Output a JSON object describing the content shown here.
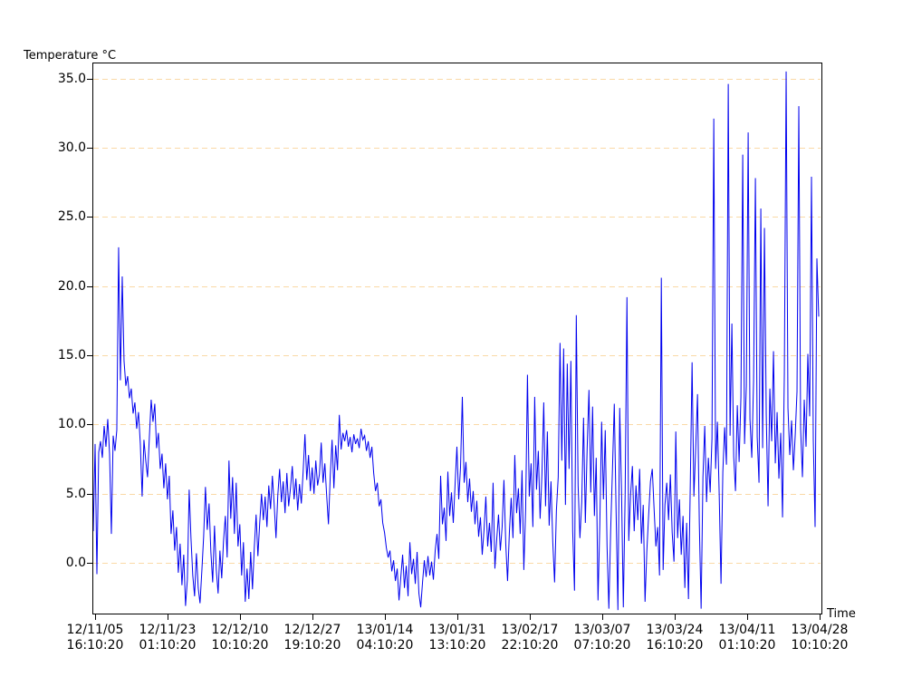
{
  "chart_data": {
    "type": "line",
    "title": "",
    "ylabel": "Temperature °C",
    "xlabel": "Time",
    "legend": "none",
    "grid": "horizontal-dashed",
    "background_color": "#ffffff",
    "axis_color": "#000000",
    "gridline_color": "#fad9a6",
    "ylim": [
      -3.65,
      36.15
    ],
    "y_ticks": [
      {
        "label": "35.0",
        "value": 35
      },
      {
        "label": "30.0",
        "value": 30
      },
      {
        "label": "25.0",
        "value": 25
      },
      {
        "label": "20.0",
        "value": 20
      },
      {
        "label": "15.0",
        "value": 15
      },
      {
        "label": "10.0",
        "value": 10
      },
      {
        "label": "5.0",
        "value": 5
      },
      {
        "label": "0.0",
        "value": 0
      }
    ],
    "x_ticks": [
      {
        "date": "12/11/05",
        "time": "16:10:20"
      },
      {
        "date": "12/11/23",
        "time": "01:10:20"
      },
      {
        "date": "12/12/10",
        "time": "10:10:20"
      },
      {
        "date": "12/12/27",
        "time": "19:10:20"
      },
      {
        "date": "13/01/14",
        "time": "04:10:20"
      },
      {
        "date": "13/01/31",
        "time": "13:10:20"
      },
      {
        "date": "13/02/17",
        "time": "22:10:20"
      },
      {
        "date": "13/03/07",
        "time": "07:10:20"
      },
      {
        "date": "13/03/24",
        "time": "16:10:20"
      },
      {
        "date": "13/04/11",
        "time": "01:10:20"
      },
      {
        "date": "13/04/28",
        "time": "10:10:20"
      }
    ],
    "series": [
      {
        "name": "Temperature",
        "color": "#0000ee",
        "values": [
          2.3,
          8.6,
          -0.8,
          8.0,
          8.8,
          7.6,
          9.9,
          8.4,
          10.4,
          7.9,
          2.1,
          9.2,
          8.1,
          9.6,
          22.8,
          13.2,
          20.7,
          14.6,
          12.8,
          13.5,
          11.9,
          12.6,
          10.8,
          11.6,
          9.7,
          10.9,
          8.6,
          4.8,
          8.9,
          7.4,
          6.2,
          9.1,
          11.8,
          10.2,
          11.5,
          8.3,
          9.4,
          6.8,
          7.9,
          5.4,
          7.2,
          4.6,
          6.3,
          2.1,
          3.8,
          0.9,
          2.6,
          -0.7,
          1.4,
          -1.6,
          0.6,
          -3.1,
          -1.2,
          5.3,
          1.8,
          -0.9,
          -2.4,
          0.7,
          -1.8,
          -2.9,
          -0.6,
          1.9,
          5.5,
          2.4,
          4.3,
          0.8,
          -1.4,
          2.7,
          -0.5,
          -2.2,
          0.9,
          -1.1,
          1.6,
          3.4,
          0.4,
          7.4,
          3.2,
          6.2,
          2.1,
          5.8,
          1.2,
          2.8,
          -0.9,
          1.5,
          -2.8,
          -0.4,
          -2.6,
          0.8,
          -1.9,
          1.1,
          3.5,
          0.5,
          2.9,
          5.0,
          3.1,
          4.8,
          2.6,
          5.6,
          3.9,
          6.3,
          4.2,
          1.8,
          4.9,
          6.8,
          4.4,
          5.9,
          3.6,
          6.5,
          4.1,
          5.4,
          7.0,
          4.6,
          6.1,
          3.8,
          5.7,
          4.3,
          6.6,
          9.3,
          6.0,
          7.8,
          5.2,
          6.9,
          5.0,
          7.4,
          5.6,
          6.4,
          8.7,
          5.8,
          7.2,
          4.9,
          2.8,
          6.3,
          8.9,
          5.4,
          8.5,
          6.7,
          10.7,
          8.2,
          9.4,
          8.8,
          9.6,
          8.4,
          9.1,
          8.0,
          9.3,
          8.6,
          9.0,
          8.3,
          9.7,
          8.9,
          9.2,
          8.1,
          8.8,
          7.6,
          8.4,
          6.5,
          5.2,
          5.8,
          4.1,
          4.6,
          2.9,
          2.2,
          1.1,
          0.4,
          0.9,
          -0.6,
          0.2,
          -1.3,
          -0.4,
          -2.7,
          -1.0,
          0.6,
          -1.8,
          -0.2,
          -2.4,
          1.5,
          -0.8,
          0.3,
          -1.5,
          0.8,
          -2.2,
          -3.2,
          -1.4,
          0.2,
          -1.0,
          0.5,
          -0.9,
          0.1,
          -1.2,
          0.9,
          2.1,
          0.3,
          6.3,
          2.8,
          4.0,
          1.6,
          6.6,
          3.4,
          5.1,
          2.9,
          5.7,
          8.4,
          4.6,
          6.9,
          12.0,
          5.8,
          7.3,
          4.4,
          6.1,
          3.7,
          5.2,
          2.8,
          4.5,
          1.9,
          3.3,
          0.6,
          2.4,
          4.8,
          1.2,
          2.9,
          0.8,
          5.8,
          -0.4,
          1.7,
          3.5,
          0.9,
          2.6,
          6.0,
          1.4,
          -1.3,
          2.2,
          4.7,
          1.8,
          7.8,
          3.6,
          5.4,
          2.1,
          6.7,
          -0.5,
          3.9,
          13.6,
          4.8,
          7.2,
          2.6,
          12.0,
          5.3,
          8.1,
          3.2,
          6.4,
          11.6,
          4.1,
          9.5,
          2.7,
          5.9,
          1.5,
          -1.4,
          3.8,
          6.2,
          15.9,
          7.4,
          15.5,
          4.2,
          14.4,
          6.8,
          14.6,
          2.3,
          -2.0,
          17.9,
          5.6,
          1.8,
          4.4,
          10.5,
          2.9,
          8.3,
          12.5,
          5.1,
          11.3,
          3.4,
          7.6,
          -2.7,
          2.8,
          10.2,
          4.6,
          9.6,
          1.2,
          -3.3,
          2.4,
          6.8,
          11.5,
          3.7,
          -3.4,
          11.2,
          5.2,
          -3.2,
          5.0,
          19.2,
          1.6,
          4.9,
          7.0,
          2.3,
          5.6,
          3.1,
          6.8,
          1.4,
          4.2,
          -2.8,
          0.9,
          3.5,
          5.9,
          6.8,
          3.9,
          1.2,
          2.6,
          -0.9,
          20.6,
          -0.5,
          4.2,
          5.8,
          3.1,
          6.4,
          2.2,
          0.1,
          9.5,
          1.8,
          4.6,
          0.6,
          3.4,
          -1.8,
          2.9,
          -2.6,
          5.6,
          14.5,
          4.8,
          8.3,
          12.2,
          2.9,
          -3.3,
          6.2,
          9.9,
          4.4,
          7.6,
          5.1,
          9.0,
          32.1,
          6.8,
          10.2,
          4.9,
          -1.5,
          6.6,
          9.8,
          7.1,
          34.6,
          9.2,
          17.3,
          7.7,
          5.2,
          11.4,
          7.3,
          12.0,
          29.5,
          8.6,
          12.8,
          31.1,
          10.4,
          7.6,
          13.2,
          27.8,
          9.1,
          5.8,
          25.6,
          8.3,
          24.2,
          10.7,
          4.1,
          12.6,
          8.8,
          15.3,
          7.2,
          10.9,
          6.1,
          9.4,
          3.3,
          13.7,
          35.5,
          11.2,
          7.8,
          10.3,
          6.7,
          9.2,
          12.4,
          33.0,
          9.7,
          6.2,
          11.8,
          8.4,
          15.1,
          10.6,
          27.9,
          8.9,
          2.6,
          22.0,
          17.8
        ]
      }
    ]
  }
}
